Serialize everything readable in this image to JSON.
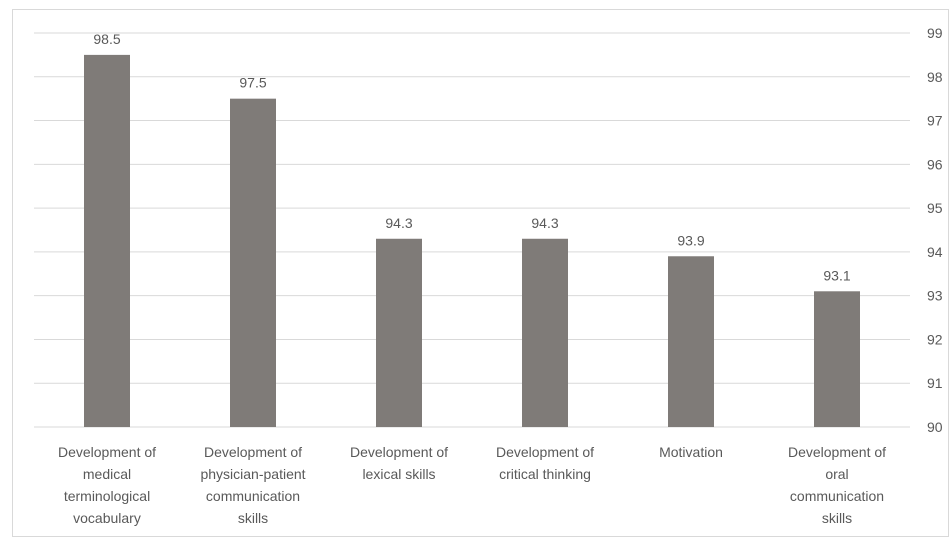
{
  "chart_data": {
    "type": "bar",
    "categories": [
      [
        "Development of",
        "medical",
        "terminological",
        "vocabulary"
      ],
      [
        "Development of",
        "physician-patient",
        "communication",
        "skills"
      ],
      [
        "Development of",
        "lexical skills"
      ],
      [
        "Development of",
        "critical thinking"
      ],
      [
        "Motivation"
      ],
      [
        "Development of",
        "oral",
        "communication",
        "skills"
      ]
    ],
    "values": [
      98.5,
      97.5,
      94.3,
      94.3,
      93.9,
      93.1
    ],
    "data_labels": [
      "98.5",
      "97.5",
      "94.3",
      "94.3",
      "93.9",
      "93.1"
    ],
    "y_ticks": [
      "90",
      "91",
      "92",
      "93",
      "94",
      "95",
      "96",
      "97",
      "98",
      "99"
    ],
    "ylim": [
      90,
      99
    ],
    "y_axis_side": "right",
    "grid": true,
    "title": "",
    "xlabel": "",
    "ylabel": "",
    "colors": {
      "bar": "#7f7b78",
      "grid": "#d9d9d9",
      "text": "#595959"
    }
  }
}
